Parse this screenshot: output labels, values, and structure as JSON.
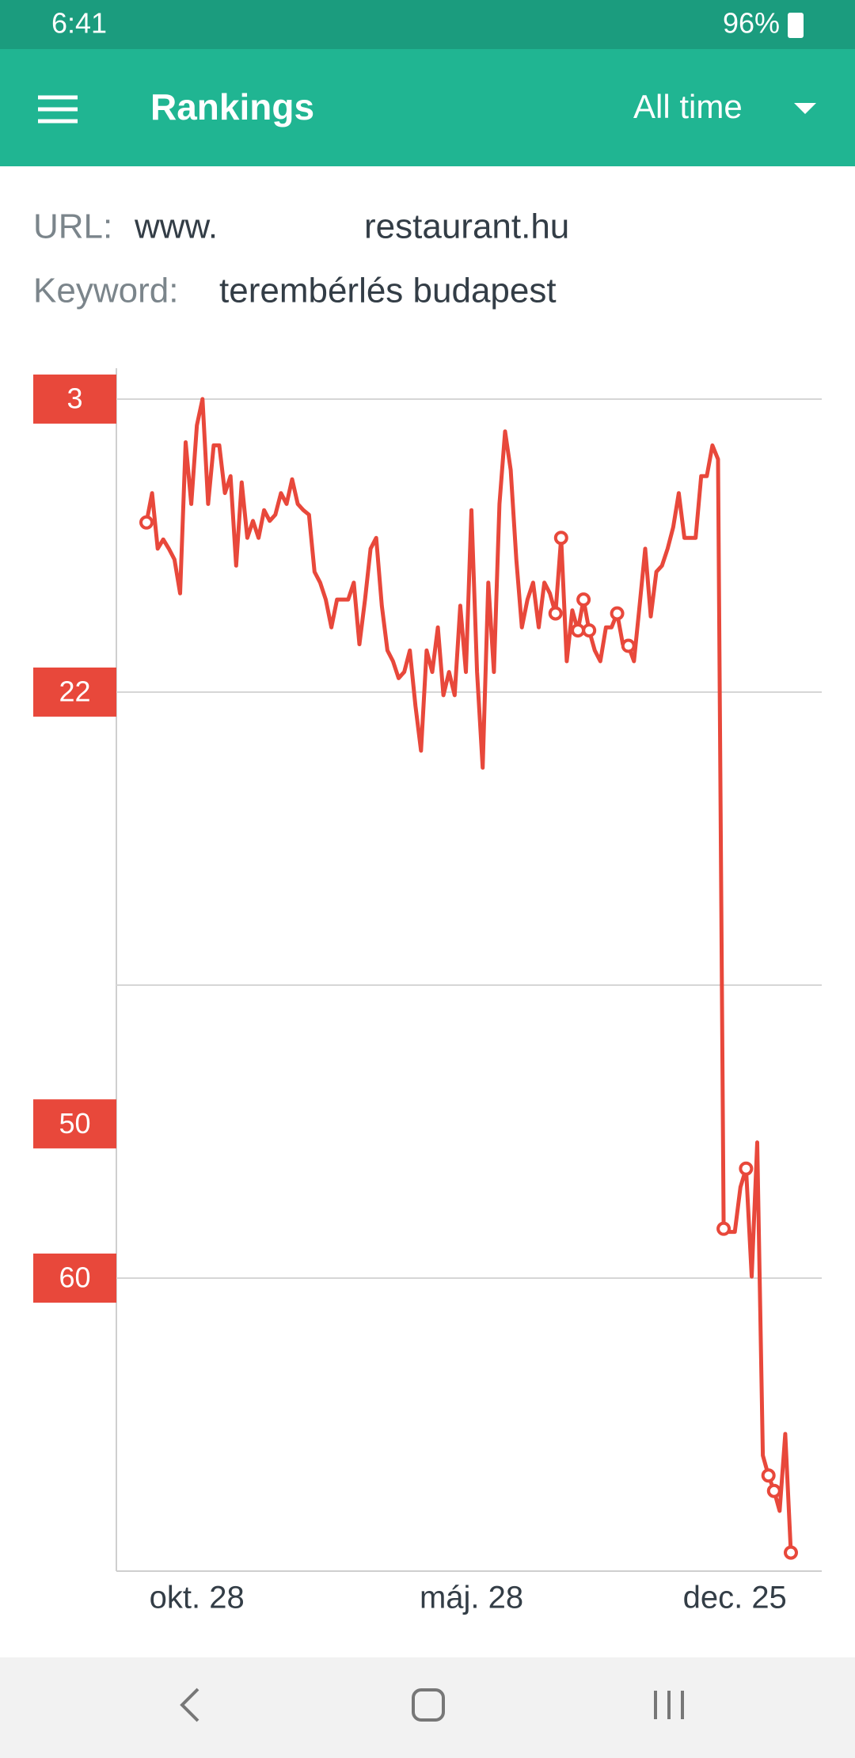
{
  "status_bar": {
    "time": "6:41",
    "battery": "96%"
  },
  "app_bar": {
    "title": "Rankings",
    "period": "All time"
  },
  "info": {
    "url_label": "URL:",
    "url_prefix": "www.",
    "url_suffix": "restaurant.hu",
    "keyword_label": "Keyword:",
    "keyword": "terembérlés budapest"
  },
  "chart_data": {
    "type": "line",
    "categories": [
      null,
      null,
      null,
      null,
      null,
      null,
      null,
      null,
      null,
      "okt. 28",
      null,
      null,
      null,
      null,
      null,
      null,
      null,
      null,
      null,
      null,
      null,
      null,
      null,
      null,
      null,
      null,
      null,
      null,
      null,
      null,
      null,
      null,
      null,
      null,
      null,
      null,
      null,
      null,
      null,
      null,
      null,
      null,
      null,
      null,
      null,
      null,
      null,
      null,
      null,
      null,
      null,
      null,
      null,
      null,
      null,
      null,
      null,
      null,
      "máj. 28",
      null,
      null,
      null,
      null,
      null,
      null,
      null,
      null,
      null,
      null,
      null,
      null,
      null,
      null,
      null,
      null,
      null,
      null,
      null,
      null,
      null,
      null,
      null,
      null,
      null,
      null,
      null,
      null,
      null,
      null,
      null,
      null,
      null,
      null,
      null,
      null,
      null,
      null,
      null,
      null,
      null,
      null,
      null,
      null,
      null,
      null,
      "dec. 25",
      null,
      null,
      null,
      null,
      null,
      null,
      null,
      null,
      null,
      null
    ],
    "values": [
      11,
      9.1,
      12.7,
      12.1,
      12.7,
      13.4,
      15.6,
      5.8,
      9.8,
      4.7,
      3,
      9.8,
      6,
      6,
      9.1,
      8,
      13.8,
      8.4,
      12,
      10.9,
      12,
      10.2,
      10.9,
      10.5,
      9.1,
      9.8,
      8.2,
      9.8,
      10.2,
      10.5,
      14.2,
      14.9,
      16,
      17.8,
      16,
      16,
      16,
      14.9,
      18.9,
      16,
      12.7,
      12,
      16.4,
      19.3,
      20,
      21.1,
      20.7,
      19.3,
      22.9,
      25.8,
      19.3,
      20.7,
      17.8,
      22.2,
      20.7,
      22.2,
      16.4,
      20.7,
      10.2,
      20.7,
      26.9,
      14.9,
      20.7,
      9.8,
      5.1,
      7.6,
      13.4,
      17.8,
      16,
      14.9,
      17.8,
      14.9,
      15.6,
      16.9,
      12,
      20,
      16.7,
      18,
      16,
      18,
      19.3,
      20,
      17.8,
      17.8,
      16.9,
      18.9,
      19,
      20,
      16.4,
      12.7,
      17.1,
      14.2,
      13.8,
      12.7,
      11.3,
      9.1,
      12,
      12,
      12,
      8,
      8,
      6,
      6.9,
      56.8,
      57,
      57,
      54.1,
      52.9,
      59.9,
      51.2,
      71.5,
      72.8,
      73.8,
      75.1,
      70.1,
      77.8
    ],
    "color": "#e8483b",
    "marker_indices": [
      0,
      73,
      74,
      77,
      78,
      79,
      84,
      86,
      103,
      107,
      111,
      112,
      115
    ],
    "ylim": [
      1,
      79
    ],
    "y_inverted": true,
    "yticks": [
      3,
      22,
      50,
      60
    ],
    "grid": true,
    "grid_lines": [
      3,
      22,
      41,
      60
    ]
  }
}
